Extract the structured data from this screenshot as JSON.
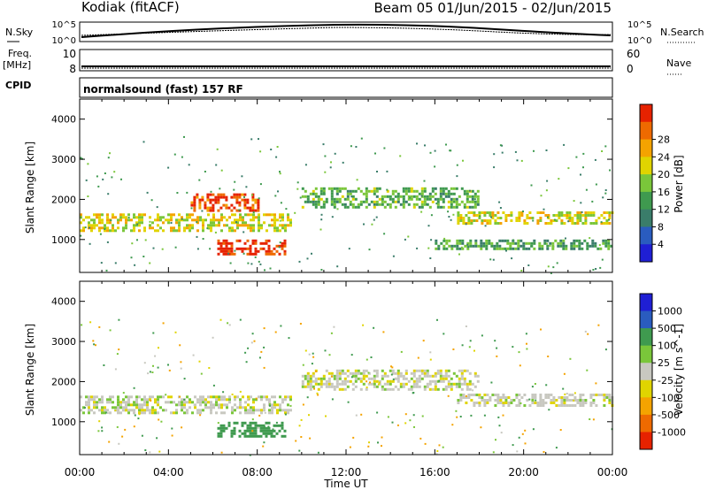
{
  "header": {
    "station": "Kodiak (fitACF)",
    "beam_date": "Beam 05  01/Jun/2015 - 02/Jun/2015"
  },
  "sky_panel": {
    "left_label": "N.Sky",
    "right_label": "N.Search",
    "left_top_tick": "10^5",
    "left_bottom_tick": "10^0",
    "right_top_tick": "10^5",
    "right_bottom_tick": "10^0"
  },
  "freq_panel": {
    "left_label_1": "Freq.",
    "left_label_2": "[MHz]",
    "left_top_tick": "10",
    "left_bottom_tick": "8",
    "right_label": "Nave",
    "right_top_tick": "60",
    "right_bottom_tick": "0"
  },
  "cpid_panel": {
    "left_label": "CPID",
    "text": "normalsound (fast) 157 RF"
  },
  "chart_data": [
    {
      "type": "heatmap",
      "quantity": "Power",
      "ylabel": "Slant Range [km]",
      "xlabel": "",
      "yticks": [
        "1000",
        "2000",
        "3000",
        "4000"
      ],
      "ylim": [
        180,
        4500
      ],
      "colorbar_label": "Power [dB]",
      "colorbar_ticks": [
        "4",
        "8",
        "12",
        "16",
        "20",
        "24",
        "28"
      ],
      "colorbar_colors": [
        "#1f1fd4",
        "#2a5cbf",
        "#3a7d6a",
        "#3f9a4f",
        "#7ac63a",
        "#e0d400",
        "#f4a300",
        "#ee6a00",
        "#e62200"
      ],
      "regions": [
        {
          "range_km": [
            1250,
            1650
          ],
          "hours": [
            0,
            9.5
          ],
          "level_db": 16
        },
        {
          "range_km": [
            1750,
            2150
          ],
          "hours": [
            5,
            8
          ],
          "level_db": 26
        },
        {
          "range_km": [
            650,
            1000
          ],
          "hours": [
            6.2,
            9.2
          ],
          "level_db": 28
        },
        {
          "range_km": [
            1800,
            2300
          ],
          "hours": [
            10,
            18
          ],
          "level_db": 10
        },
        {
          "range_km": [
            1400,
            1700
          ],
          "hours": [
            17,
            24
          ],
          "level_db": 16
        },
        {
          "range_km": [
            800,
            1000
          ],
          "hours": [
            16,
            24
          ],
          "level_db": 8
        }
      ]
    },
    {
      "type": "heatmap",
      "quantity": "Velocity",
      "ylabel": "Slant Range [km]",
      "xlabel": "Time UT",
      "x": [
        "00:00",
        "04:00",
        "08:00",
        "12:00",
        "16:00",
        "20:00",
        "00:00"
      ],
      "yticks": [
        "1000",
        "2000",
        "3000",
        "4000"
      ],
      "ylim": [
        180,
        4500
      ],
      "colorbar_label": "Velocity [m s^-1]",
      "colorbar_ticks": [
        "-1000",
        "-500",
        "-100",
        "-25",
        "25",
        "100",
        "500",
        "1000"
      ],
      "colorbar_colors": [
        "#e62200",
        "#ee6a00",
        "#f4a300",
        "#e0d400",
        "#c8c8c0",
        "#7ac63a",
        "#3f9a4f",
        "#2a5cbf",
        "#1f1fd4"
      ],
      "regions": [
        {
          "range_km": [
            1250,
            1650
          ],
          "hours": [
            0,
            9.5
          ],
          "velocity_ms": 0
        },
        {
          "range_km": [
            650,
            1000
          ],
          "hours": [
            6.2,
            9.2
          ],
          "velocity_ms": 200
        },
        {
          "range_km": [
            1800,
            2300
          ],
          "hours": [
            10,
            18
          ],
          "velocity_ms": 0
        },
        {
          "range_km": [
            1400,
            1700
          ],
          "hours": [
            17,
            24
          ],
          "velocity_ms": 0
        }
      ]
    }
  ]
}
